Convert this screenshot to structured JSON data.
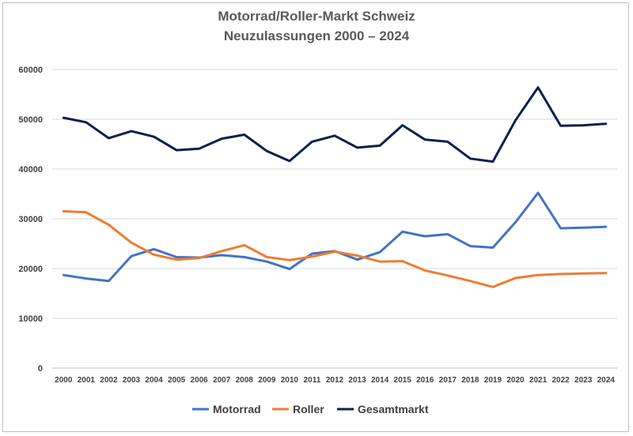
{
  "chart_data": {
    "type": "line",
    "title": "Motorrad/Roller-Markt Schweiz",
    "subtitle": "Neuzulassungen 2000 – 2024",
    "xlabel": "",
    "ylabel": "",
    "x": [
      "2000",
      "2001",
      "2002",
      "2003",
      "2004",
      "2005",
      "2006",
      "2007",
      "2008",
      "2009",
      "2010",
      "2011",
      "2012",
      "2013",
      "2014",
      "2015",
      "2016",
      "2017",
      "2018",
      "2019",
      "2020",
      "2021",
      "2022",
      "2023",
      "2024"
    ],
    "ylim": [
      0,
      60000
    ],
    "yticks": [
      "0",
      "10000",
      "20000",
      "30000",
      "40000",
      "50000",
      "60000"
    ],
    "grid": true,
    "legend_position": "bottom",
    "series": [
      {
        "name": "Motorrad",
        "color": "#4472c4",
        "values": [
          18700,
          18000,
          17500,
          22500,
          23900,
          22300,
          22200,
          22700,
          22300,
          21400,
          19900,
          23000,
          23500,
          21800,
          23300,
          27400,
          26500,
          26900,
          24500,
          24200,
          29300,
          35200,
          28100,
          28200,
          28400
        ]
      },
      {
        "name": "Roller",
        "color": "#ed7d31",
        "values": [
          31500,
          31300,
          28800,
          25200,
          22800,
          21800,
          22100,
          23500,
          24700,
          22300,
          21700,
          22400,
          23400,
          22600,
          21400,
          21500,
          19600,
          18600,
          17500,
          16300,
          18100,
          18700,
          18900,
          19000,
          19100
        ]
      },
      {
        "name": "Gesamtmarkt",
        "color": "#0d1f4f",
        "values": [
          50300,
          49400,
          46200,
          47600,
          46500,
          43800,
          44100,
          46100,
          46900,
          43600,
          41600,
          45500,
          46700,
          44300,
          44700,
          48800,
          45900,
          45500,
          42100,
          41500,
          49800,
          56400,
          48700,
          48800,
          49100
        ]
      }
    ]
  }
}
